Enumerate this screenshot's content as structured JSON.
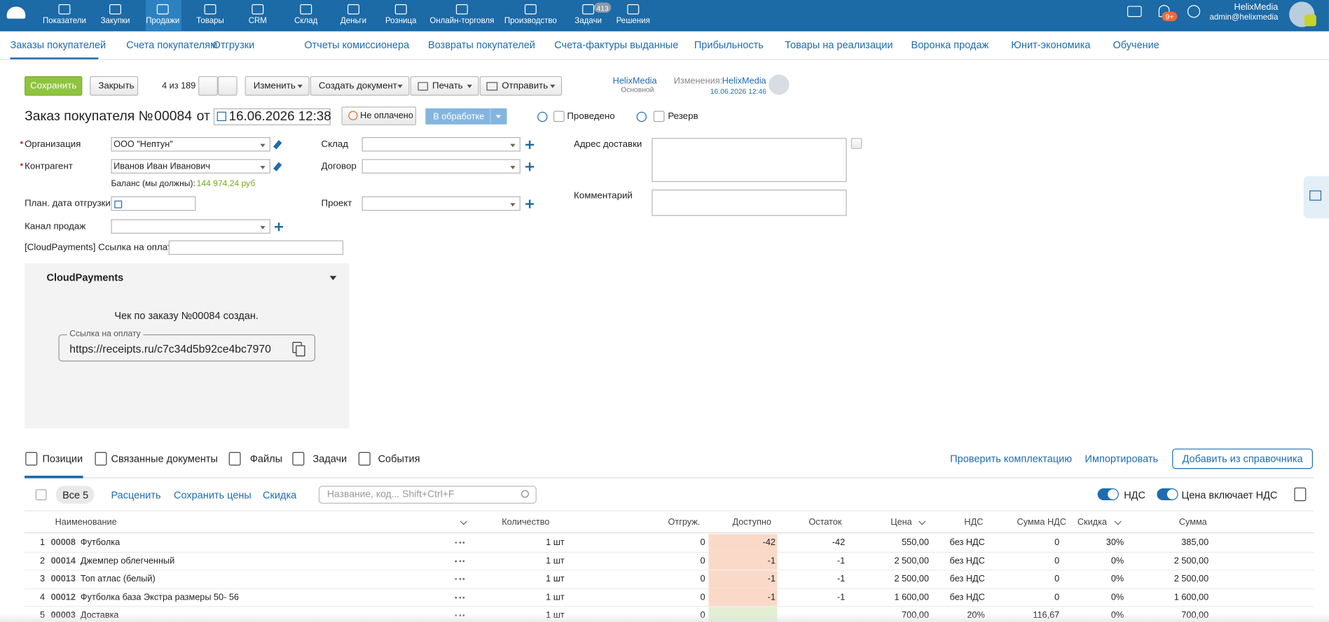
{
  "top_nav": {
    "items": [
      "Показатели",
      "Закупки",
      "Продажи",
      "Товары",
      "CRM",
      "Склад",
      "Деньги",
      "Розница",
      "Онлайн-торговля",
      "Производство",
      "Задачи",
      "Решения"
    ],
    "tasks_badge": "413",
    "notifications_badge": "9+",
    "user_name": "HelixMedia",
    "user_email": "admin@helixmedia"
  },
  "sub_nav": {
    "items": [
      "Заказы покупателей",
      "Счета покупателям",
      "Отгрузки",
      "Отчеты комиссионера",
      "Возвраты покупателей",
      "Счета-фактуры выданные",
      "Прибыльность",
      "Товары на реализации",
      "Воронка продаж",
      "Юнит-экономика",
      "Обучение"
    ]
  },
  "toolbar": {
    "save": "Сохранить",
    "close": "Закрыть",
    "counter": "4 из 189",
    "change": "Изменить",
    "create_document": "Создать документ",
    "print": "Печать",
    "send": "Отправить",
    "owner": "HelixMedia",
    "owner_group": "Основной",
    "changes_label": "Изменения:",
    "changes_user": "HelixMedia",
    "changes_date": "16.06.2026 12:46"
  },
  "header": {
    "title": "Заказ покупателя №",
    "number": "00084",
    "from": "от",
    "date": "16.06.2026 12:38",
    "payment_status": "Не оплачено",
    "status": "В обработке",
    "posted": "Проведено",
    "reserve": "Резерв"
  },
  "form": {
    "organization_label": "Организация",
    "organization": "ООО \"Нептун\"",
    "counterparty_label": "Контрагент",
    "counterparty": "Иванов Иван Иванович",
    "balance_label": "Баланс (мы должны):",
    "balance": "144 974,24 руб",
    "ship_date_label": "План. дата отгрузки",
    "channel_label": "Канал продаж",
    "payment_link_label": "[CloudPayments] Ссылка на оплату",
    "warehouse_label": "Склад",
    "contract_label": "Договор",
    "project_label": "Проект",
    "address_label": "Адрес доставки",
    "comment_label": "Комментарий"
  },
  "cloudpayments": {
    "title": "CloudPayments",
    "message": "Чек по заказу №00084 создан.",
    "link_label": "Ссылка на оплату",
    "link": "https://receipts.ru/c7c34d5b92ce4bc7970"
  },
  "tabs": {
    "items": [
      "Позиции",
      "Связанные документы",
      "Файлы",
      "Задачи",
      "События"
    ],
    "check": "Проверить комплектацию",
    "import": "Импортировать",
    "add": "Добавить из справочника"
  },
  "positions_toolbar": {
    "all": "Все 5",
    "reprice": "Расценить",
    "save_prices": "Сохранить цены",
    "discount": "Скидка",
    "search_placeholder": "Название, код... Shift+Ctrl+F",
    "vat": "НДС",
    "price_includes_vat": "Цена включает НДС"
  },
  "table": {
    "columns": [
      "Наименование",
      "Количество",
      "Отгруж.",
      "Доступно",
      "Остаток",
      "Цена",
      "НДС",
      "Сумма НДС",
      "Скидка",
      "Сумма"
    ],
    "rows": [
      [
        "1",
        "00008",
        "Футболка",
        "1 шт",
        "0",
        "-42",
        "-42",
        "550,00",
        "без НДС",
        "0",
        "30%",
        "385,00"
      ],
      [
        "2",
        "00014",
        "Джемпер облегченный",
        "1 шт",
        "0",
        "-1",
        "-1",
        "2 500,00",
        "без НДС",
        "0",
        "0%",
        "2 500,00"
      ],
      [
        "3",
        "00013",
        "Топ атлас (белый)",
        "1 шт",
        "0",
        "-1",
        "-1",
        "2 500,00",
        "без НДС",
        "0",
        "0%",
        "2 500,00"
      ],
      [
        "4",
        "00012",
        "Футболка база Экстра размеры 50- 56",
        "1 шт",
        "0",
        "-1",
        "-1",
        "1 600,00",
        "без НДС",
        "0",
        "0%",
        "1 600,00"
      ],
      [
        "5",
        "00003",
        "Доставка",
        "1 шт",
        "0",
        null,
        null,
        "700,00",
        "20%",
        "116,67",
        "0%",
        "700,00"
      ]
    ]
  }
}
